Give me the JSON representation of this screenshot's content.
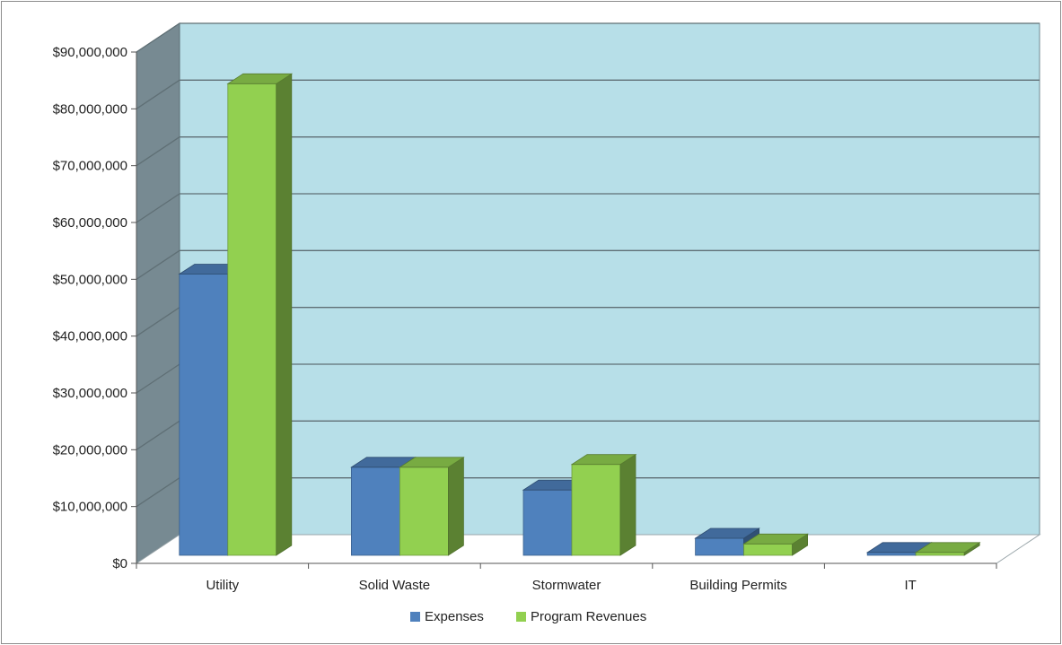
{
  "chart_data": {
    "type": "bar",
    "style": "3d-clustered-column",
    "categories": [
      "Utility",
      "Solid Waste",
      "Stormwater",
      "Building Permits",
      "IT"
    ],
    "series": [
      {
        "name": "Expenses",
        "values": [
          49500000,
          15500000,
          11500000,
          3000000,
          500000
        ]
      },
      {
        "name": "Program Revenues",
        "values": [
          83000000,
          15500000,
          16000000,
          2000000,
          500000
        ]
      }
    ],
    "ylim": [
      0,
      90000000
    ],
    "yticks": [
      "$0",
      "$10,000,000",
      "$20,000,000",
      "$30,000,000",
      "$40,000,000",
      "$50,000,000",
      "$60,000,000",
      "$70,000,000",
      "$80,000,000",
      "$90,000,000"
    ],
    "title": "",
    "xlabel": "",
    "ylabel": "",
    "grid": true,
    "legend_position": "bottom",
    "colors": {
      "series": [
        "#4f81bd",
        "#92d050"
      ],
      "wall": "#b7dfe8",
      "side_wall": "#778a92",
      "floor": "#ffffff",
      "gridline": "#5f6f75"
    }
  }
}
